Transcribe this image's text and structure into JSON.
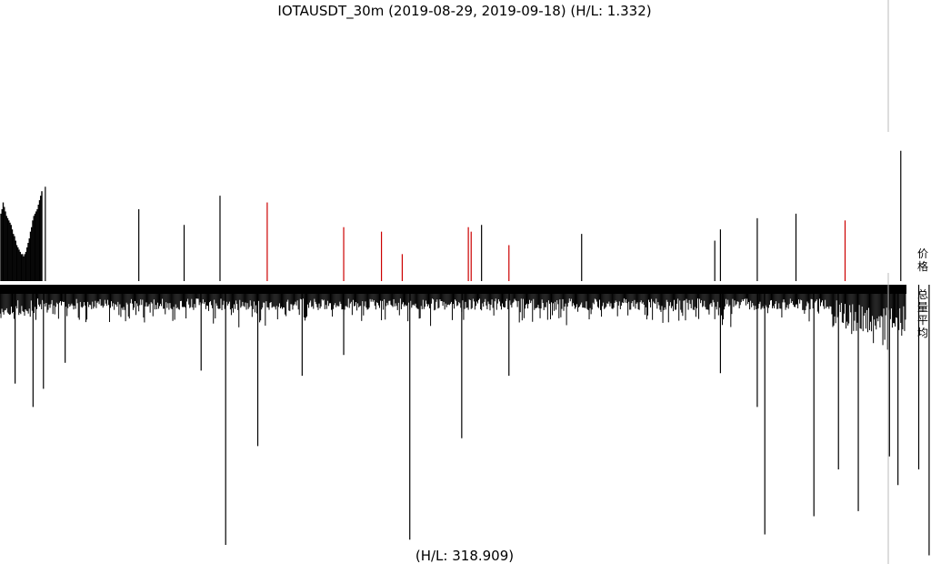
{
  "chart_data": {
    "type": "bar",
    "title": "IOTAUSDT_30m (2019-08-29, 2019-09-18) (H/L: 1.332)",
    "bottom_text": "(H/L: 318.909)",
    "panels": [
      {
        "name": "price",
        "label": "价格"
      },
      {
        "name": "volume",
        "label": "总量平均"
      }
    ],
    "x_count": 960,
    "price_upper_series": {
      "color_up": "#000000",
      "color_down": "#cc0000",
      "description_values": "relative price height 0..1 shown as spikes",
      "dense_block_values": [
        0.3,
        0.32,
        0.35,
        0.33,
        0.31,
        0.29,
        0.28,
        0.27,
        0.26,
        0.25,
        0.23,
        0.21,
        0.2,
        0.18,
        0.16,
        0.15,
        0.14,
        0.13,
        0.12,
        0.12,
        0.11,
        0.12,
        0.13,
        0.15,
        0.17,
        0.19,
        0.22,
        0.24,
        0.27,
        0.29,
        0.3,
        0.31,
        0.32,
        0.34,
        0.36,
        0.38,
        0.4
      ],
      "spikes": [
        {
          "i": 48,
          "v": 0.42,
          "c": "#000000"
        },
        {
          "i": 147,
          "v": 0.32,
          "c": "#000000"
        },
        {
          "i": 195,
          "v": 0.25,
          "c": "#000000"
        },
        {
          "i": 233,
          "v": 0.38,
          "c": "#000000"
        },
        {
          "i": 283,
          "v": 0.35,
          "c": "#cc0000"
        },
        {
          "i": 364,
          "v": 0.24,
          "c": "#cc0000"
        },
        {
          "i": 404,
          "v": 0.22,
          "c": "#cc0000"
        },
        {
          "i": 426,
          "v": 0.12,
          "c": "#cc0000"
        },
        {
          "i": 496,
          "v": 0.24,
          "c": "#cc0000"
        },
        {
          "i": 499,
          "v": 0.22,
          "c": "#cc0000"
        },
        {
          "i": 510,
          "v": 0.25,
          "c": "#000000"
        },
        {
          "i": 539,
          "v": 0.16,
          "c": "#cc0000"
        },
        {
          "i": 616,
          "v": 0.21,
          "c": "#000000"
        },
        {
          "i": 757,
          "v": 0.18,
          "c": "#000000"
        },
        {
          "i": 763,
          "v": 0.23,
          "c": "#000000"
        },
        {
          "i": 802,
          "v": 0.28,
          "c": "#000000"
        },
        {
          "i": 843,
          "v": 0.3,
          "c": "#000000"
        },
        {
          "i": 895,
          "v": 0.27,
          "c": "#cc0000"
        },
        {
          "i": 954,
          "v": 0.58,
          "c": "#000000"
        },
        {
          "i": 993,
          "v": 1.0,
          "c": "#000000"
        }
      ]
    },
    "volume_series": {
      "color": "#000000",
      "description_values": "relative volume depth 0..1 shown below axis",
      "spikes": [
        {
          "i": 16,
          "v": 0.38
        },
        {
          "i": 35,
          "v": 0.47
        },
        {
          "i": 46,
          "v": 0.4
        },
        {
          "i": 69,
          "v": 0.3
        },
        {
          "i": 213,
          "v": 0.33
        },
        {
          "i": 239,
          "v": 1.0
        },
        {
          "i": 273,
          "v": 0.62
        },
        {
          "i": 320,
          "v": 0.35
        },
        {
          "i": 364,
          "v": 0.27
        },
        {
          "i": 434,
          "v": 0.98
        },
        {
          "i": 489,
          "v": 0.59
        },
        {
          "i": 539,
          "v": 0.35
        },
        {
          "i": 763,
          "v": 0.34
        },
        {
          "i": 802,
          "v": 0.47
        },
        {
          "i": 810,
          "v": 0.96
        },
        {
          "i": 862,
          "v": 0.89
        },
        {
          "i": 888,
          "v": 0.71
        },
        {
          "i": 909,
          "v": 0.87
        },
        {
          "i": 942,
          "v": 0.66
        },
        {
          "i": 951,
          "v": 0.77
        },
        {
          "i": 973,
          "v": 0.71
        },
        {
          "i": 984,
          "v": 1.04
        }
      ]
    },
    "reference_line": {
      "color": "#bbbbbb"
    }
  }
}
